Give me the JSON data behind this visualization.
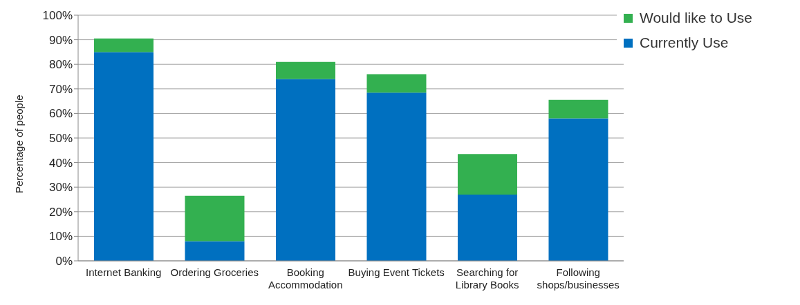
{
  "chart_data": {
    "type": "bar",
    "stacked": true,
    "ylabel": "Percentage of people",
    "categories": [
      "Internet Banking",
      "Ordering Groceries",
      "Booking Accommodation",
      "Buying Event Tickets",
      "Searching for Library Books",
      "Following shops/businesses"
    ],
    "series": [
      {
        "name": "Currently Use",
        "color": "#0070c0",
        "values": [
          85,
          8,
          74,
          68.5,
          27,
          58
        ]
      },
      {
        "name": "Would like to Use",
        "color": "#33b050",
        "values": [
          5.5,
          18.5,
          7,
          7.5,
          16.5,
          7.5
        ]
      }
    ],
    "ylim": [
      0,
      100
    ],
    "yticks": [
      {
        "value": 0,
        "label": "0%"
      },
      {
        "value": 10,
        "label": "10%"
      },
      {
        "value": 20,
        "label": "20%"
      },
      {
        "value": 30,
        "label": "30%"
      },
      {
        "value": 40,
        "label": "40%"
      },
      {
        "value": 50,
        "label": "50%"
      },
      {
        "value": 60,
        "label": "60%"
      },
      {
        "value": 70,
        "label": "70%"
      },
      {
        "value": 80,
        "label": "80%"
      },
      {
        "value": 90,
        "label": "90%"
      },
      {
        "value": 100,
        "label": "100%"
      }
    ],
    "grid": "y",
    "legend": "top right"
  }
}
